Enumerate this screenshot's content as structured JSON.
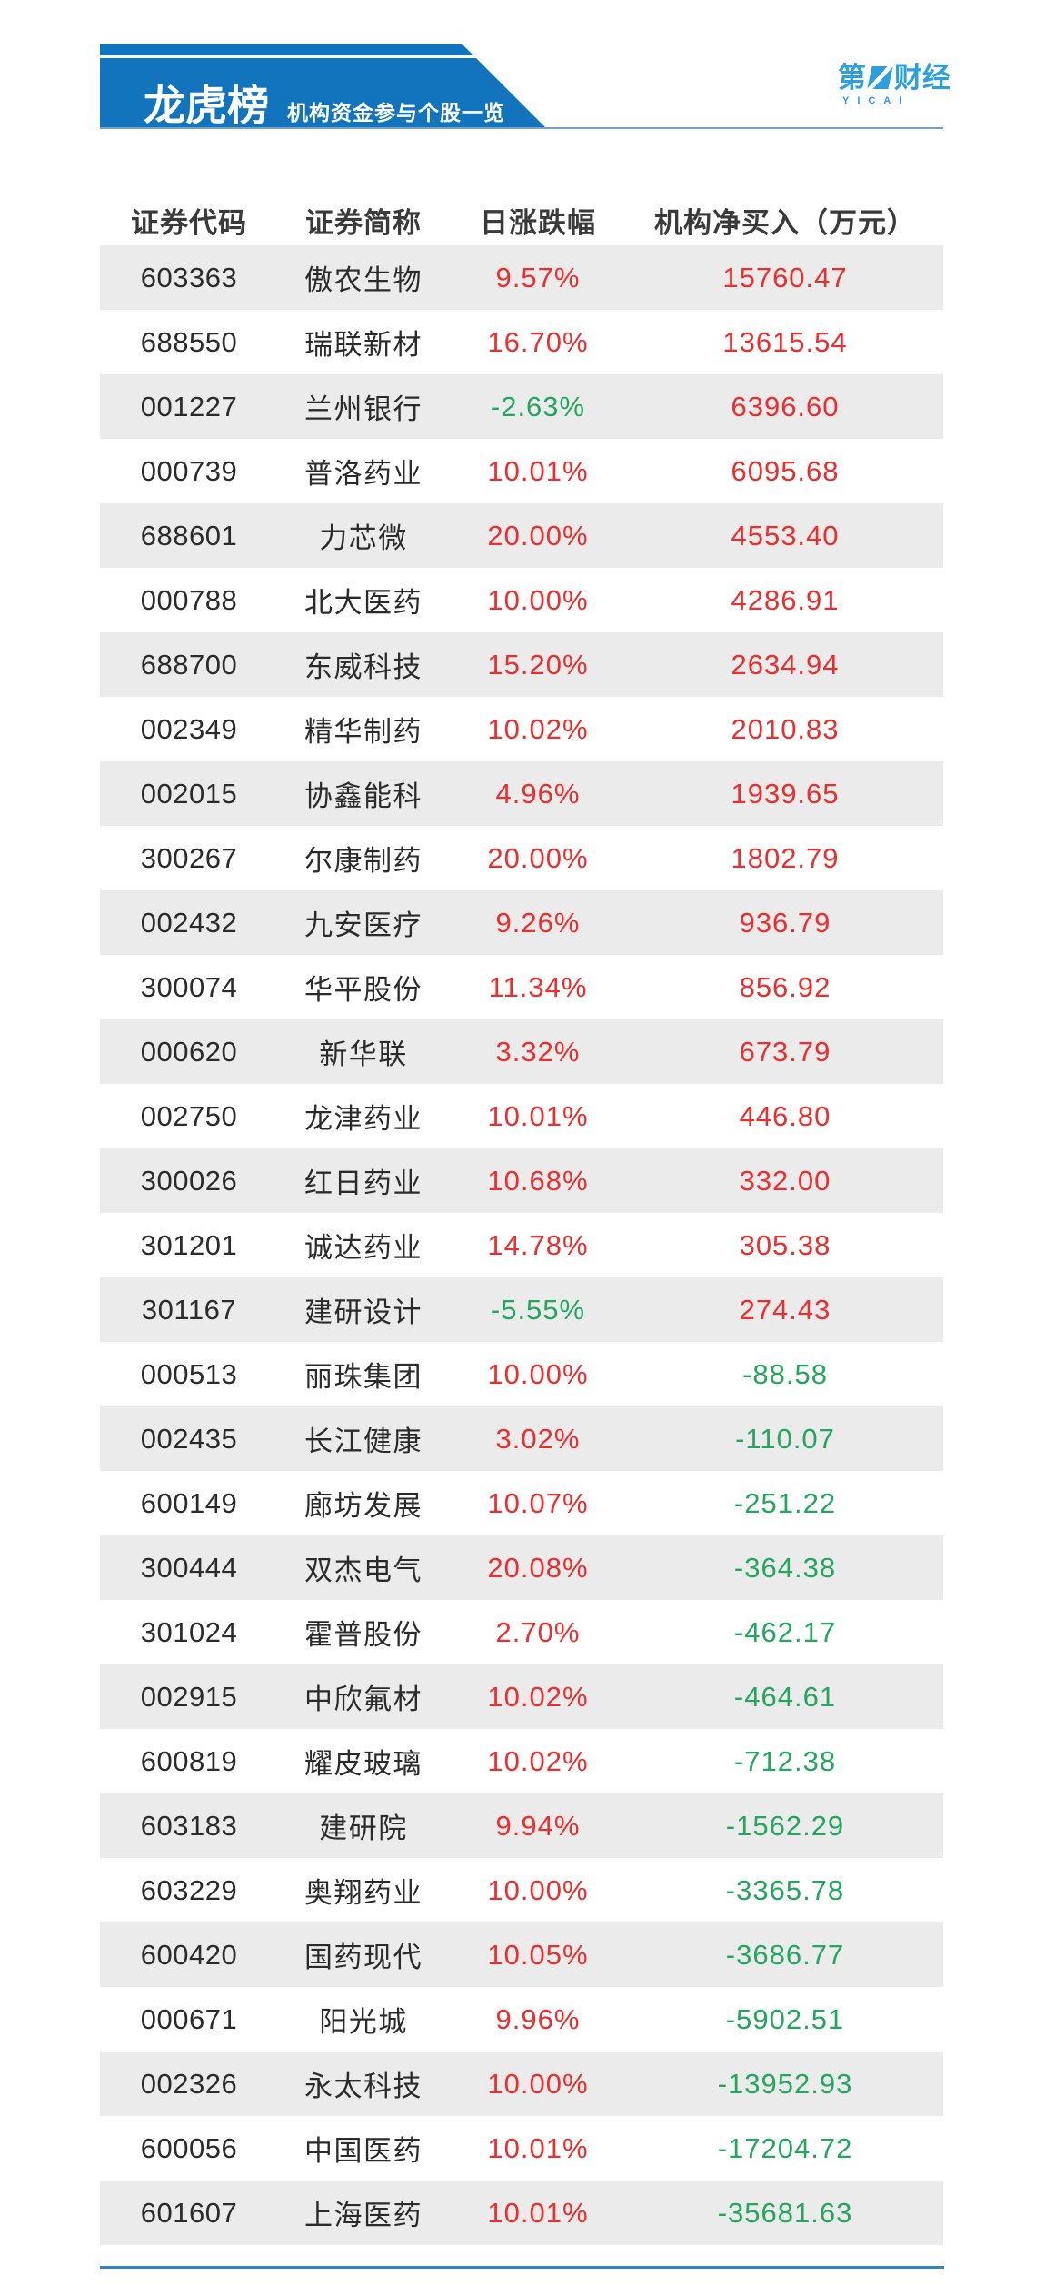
{
  "header": {
    "banner": {
      "title": "龙虎榜",
      "subtitle": "机构资金参与个股一览"
    },
    "logo": {
      "char_first": "第",
      "chars_rest": "财经",
      "subtext": "YICAI"
    }
  },
  "table": {
    "columns": [
      "证券代码",
      "证券简称",
      "日涨跌幅",
      "机构净买入（万元）"
    ],
    "rows": [
      {
        "code": "603363",
        "name": "傲农生物",
        "change": "9.57%",
        "net_buy": "15760.47"
      },
      {
        "code": "688550",
        "name": "瑞联新材",
        "change": "16.70%",
        "net_buy": "13615.54"
      },
      {
        "code": "001227",
        "name": "兰州银行",
        "change": "-2.63%",
        "net_buy": "6396.60"
      },
      {
        "code": "000739",
        "name": "普洛药业",
        "change": "10.01%",
        "net_buy": "6095.68"
      },
      {
        "code": "688601",
        "name": "力芯微",
        "change": "20.00%",
        "net_buy": "4553.40"
      },
      {
        "code": "000788",
        "name": "北大医药",
        "change": "10.00%",
        "net_buy": "4286.91"
      },
      {
        "code": "688700",
        "name": "东威科技",
        "change": "15.20%",
        "net_buy": "2634.94"
      },
      {
        "code": "002349",
        "name": "精华制药",
        "change": "10.02%",
        "net_buy": "2010.83"
      },
      {
        "code": "002015",
        "name": "协鑫能科",
        "change": "4.96%",
        "net_buy": "1939.65"
      },
      {
        "code": "300267",
        "name": "尔康制药",
        "change": "20.00%",
        "net_buy": "1802.79"
      },
      {
        "code": "002432",
        "name": "九安医疗",
        "change": "9.26%",
        "net_buy": "936.79"
      },
      {
        "code": "300074",
        "name": "华平股份",
        "change": "11.34%",
        "net_buy": "856.92"
      },
      {
        "code": "000620",
        "name": "新华联",
        "change": "3.32%",
        "net_buy": "673.79"
      },
      {
        "code": "002750",
        "name": "龙津药业",
        "change": "10.01%",
        "net_buy": "446.80"
      },
      {
        "code": "300026",
        "name": "红日药业",
        "change": "10.68%",
        "net_buy": "332.00"
      },
      {
        "code": "301201",
        "name": "诚达药业",
        "change": "14.78%",
        "net_buy": "305.38"
      },
      {
        "code": "301167",
        "name": "建研设计",
        "change": "-5.55%",
        "net_buy": "274.43"
      },
      {
        "code": "000513",
        "name": "丽珠集团",
        "change": "10.00%",
        "net_buy": "-88.58"
      },
      {
        "code": "002435",
        "name": "长江健康",
        "change": "3.02%",
        "net_buy": "-110.07"
      },
      {
        "code": "600149",
        "name": "廊坊发展",
        "change": "10.07%",
        "net_buy": "-251.22"
      },
      {
        "code": "300444",
        "name": "双杰电气",
        "change": "20.08%",
        "net_buy": "-364.38"
      },
      {
        "code": "301024",
        "name": "霍普股份",
        "change": "2.70%",
        "net_buy": "-462.17"
      },
      {
        "code": "002915",
        "name": "中欣氟材",
        "change": "10.02%",
        "net_buy": "-464.61"
      },
      {
        "code": "600819",
        "name": "耀皮玻璃",
        "change": "10.02%",
        "net_buy": "-712.38"
      },
      {
        "code": "603183",
        "name": "建研院",
        "change": "9.94%",
        "net_buy": "-1562.29"
      },
      {
        "code": "603229",
        "name": "奥翔药业",
        "change": "10.00%",
        "net_buy": "-3365.78"
      },
      {
        "code": "600420",
        "name": "国药现代",
        "change": "10.05%",
        "net_buy": "-3686.77"
      },
      {
        "code": "000671",
        "name": "阳光城",
        "change": "9.96%",
        "net_buy": "-5902.51"
      },
      {
        "code": "002326",
        "name": "永太科技",
        "change": "10.00%",
        "net_buy": "-13952.93"
      },
      {
        "code": "600056",
        "name": "中国医药",
        "change": "10.01%",
        "net_buy": "-17204.72"
      },
      {
        "code": "601607",
        "name": "上海医药",
        "change": "10.01%",
        "net_buy": "-35681.63"
      }
    ]
  },
  "chart_data": {
    "type": "table",
    "title": "龙虎榜 机构资金参与个股一览",
    "columns": [
      "证券代码",
      "证券简称",
      "日涨跌幅",
      "机构净买入（万元）"
    ],
    "rows": [
      [
        "603363",
        "傲农生物",
        "9.57%",
        15760.47
      ],
      [
        "688550",
        "瑞联新材",
        "16.70%",
        13615.54
      ],
      [
        "001227",
        "兰州银行",
        "-2.63%",
        6396.6
      ],
      [
        "000739",
        "普洛药业",
        "10.01%",
        6095.68
      ],
      [
        "688601",
        "力芯微",
        "20.00%",
        4553.4
      ],
      [
        "000788",
        "北大医药",
        "10.00%",
        4286.91
      ],
      [
        "688700",
        "东威科技",
        "15.20%",
        2634.94
      ],
      [
        "002349",
        "精华制药",
        "10.02%",
        2010.83
      ],
      [
        "002015",
        "协鑫能科",
        "4.96%",
        1939.65
      ],
      [
        "300267",
        "尔康制药",
        "20.00%",
        1802.79
      ],
      [
        "002432",
        "九安医疗",
        "9.26%",
        936.79
      ],
      [
        "300074",
        "华平股份",
        "11.34%",
        856.92
      ],
      [
        "000620",
        "新华联",
        "3.32%",
        673.79
      ],
      [
        "002750",
        "龙津药业",
        "10.01%",
        446.8
      ],
      [
        "300026",
        "红日药业",
        "10.68%",
        332.0
      ],
      [
        "301201",
        "诚达药业",
        "14.78%",
        305.38
      ],
      [
        "301167",
        "建研设计",
        "-5.55%",
        274.43
      ],
      [
        "000513",
        "丽珠集团",
        "10.00%",
        -88.58
      ],
      [
        "002435",
        "长江健康",
        "3.02%",
        -110.07
      ],
      [
        "600149",
        "廊坊发展",
        "10.07%",
        -251.22
      ],
      [
        "300444",
        "双杰电气",
        "20.08%",
        -364.38
      ],
      [
        "301024",
        "霍普股份",
        "2.70%",
        -462.17
      ],
      [
        "002915",
        "中欣氟材",
        "10.02%",
        -464.61
      ],
      [
        "600819",
        "耀皮玻璃",
        "10.02%",
        -712.38
      ],
      [
        "603183",
        "建研院",
        "9.94%",
        -1562.29
      ],
      [
        "603229",
        "奥翔药业",
        "10.00%",
        -3365.78
      ],
      [
        "600420",
        "国药现代",
        "10.05%",
        -3686.77
      ],
      [
        "000671",
        "阳光城",
        "9.96%",
        -5902.51
      ],
      [
        "002326",
        "永太科技",
        "10.00%",
        -13952.93
      ],
      [
        "600056",
        "中国医药",
        "10.01%",
        -17204.72
      ],
      [
        "601607",
        "上海医药",
        "10.01%",
        -35681.63
      ]
    ],
    "legend_note": "red = rise / positive net buy, green = fall / negative net buy"
  },
  "colors": {
    "up": "#ef2d2d",
    "down": "#23a65e",
    "banner_blue": "#1274bd",
    "logo_blue": "#2ba0dc",
    "row_alt": "#ebebeb",
    "header_rule": "#76a0c6",
    "bottom_rule": "#2e86c6"
  }
}
